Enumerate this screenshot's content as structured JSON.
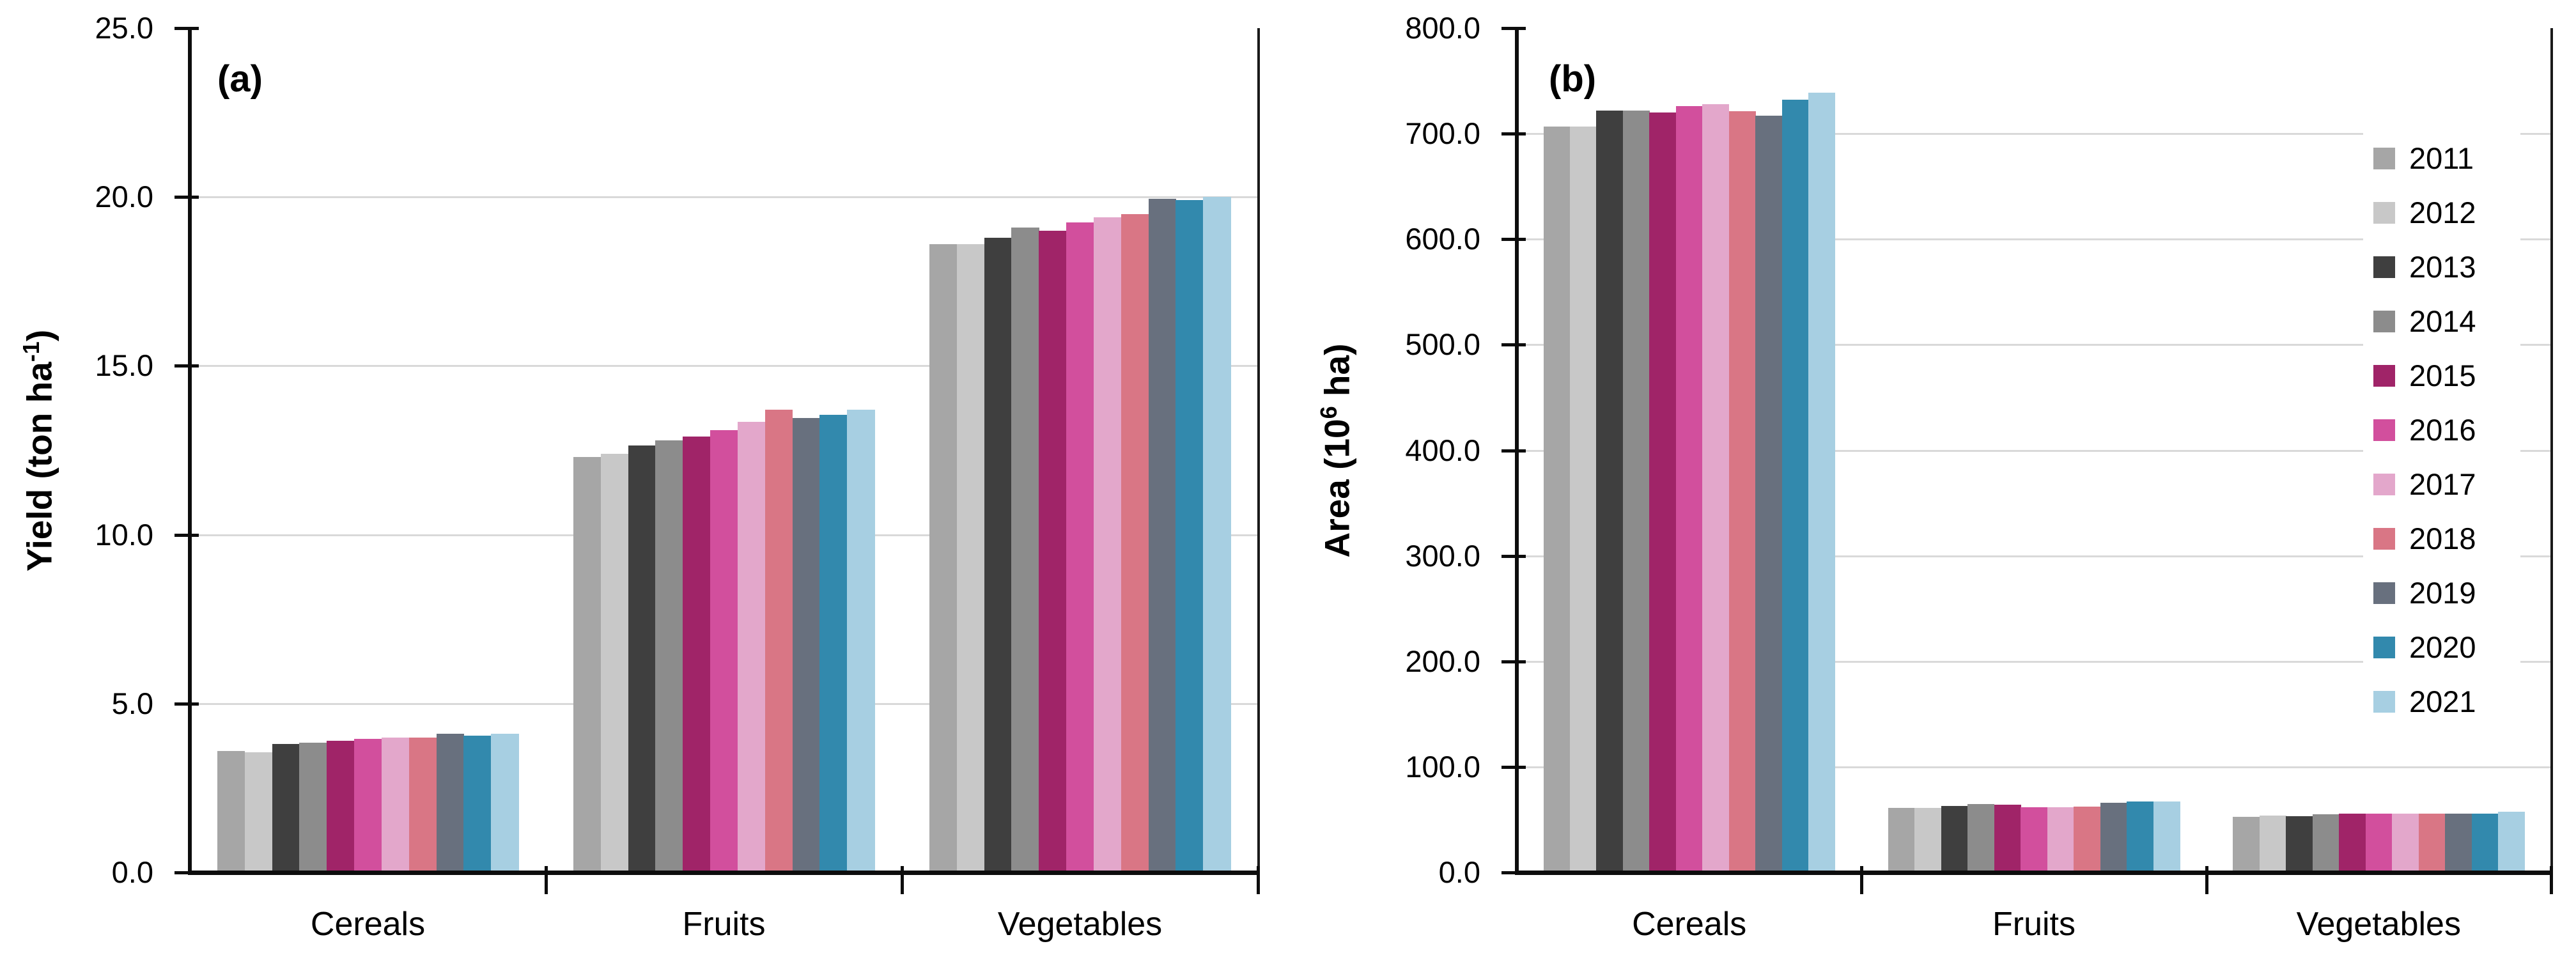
{
  "figure": {
    "background": "#ffffff",
    "grid_color": "#d9d9d9",
    "axis_color": "#0d0d0d"
  },
  "years": [
    "2011",
    "2012",
    "2013",
    "2014",
    "2015",
    "2016",
    "2017",
    "2018",
    "2019",
    "2020",
    "2021"
  ],
  "year_colors": {
    "2011": "#a6a6a6",
    "2012": "#c8c8c8",
    "2013": "#3f3f3f",
    "2014": "#8c8c8c",
    "2015": "#a02468",
    "2016": "#d24f9d",
    "2017": "#e3a7cb",
    "2018": "#d97685",
    "2019": "#68707e",
    "2020": "#3289ad",
    "2021": "#a7cfe2"
  },
  "chart_data": [
    {
      "type": "bar",
      "panel_label": "(a)",
      "title": "",
      "xlabel": "",
      "ylabel": "Yield (ton ha⁻¹)",
      "ylabel_parts": {
        "prefix": "Yield (ton ha",
        "sup": "-1",
        "suffix": ")"
      },
      "ylim": [
        0,
        25
      ],
      "ytick_step": 5,
      "ytick_labels": [
        "0.0",
        "5.0",
        "10.0",
        "15.0",
        "20.0",
        "25.0"
      ],
      "grid": true,
      "legend": false,
      "categories": [
        "Cereals",
        "Fruits",
        "Vegetables"
      ],
      "series": [
        {
          "name": "2011",
          "values": [
            3.6,
            12.3,
            18.6
          ]
        },
        {
          "name": "2012",
          "values": [
            3.55,
            12.4,
            18.6
          ]
        },
        {
          "name": "2013",
          "values": [
            3.8,
            12.65,
            18.8
          ]
        },
        {
          "name": "2014",
          "values": [
            3.85,
            12.8,
            19.1
          ]
        },
        {
          "name": "2015",
          "values": [
            3.9,
            12.9,
            19.0
          ]
        },
        {
          "name": "2016",
          "values": [
            3.95,
            13.1,
            19.25
          ]
        },
        {
          "name": "2017",
          "values": [
            4.0,
            13.35,
            19.4
          ]
        },
        {
          "name": "2018",
          "values": [
            4.0,
            13.7,
            19.5
          ]
        },
        {
          "name": "2019",
          "values": [
            4.1,
            13.45,
            19.95
          ]
        },
        {
          "name": "2020",
          "values": [
            4.05,
            13.55,
            19.9
          ]
        },
        {
          "name": "2021",
          "values": [
            4.1,
            13.7,
            20.0
          ]
        }
      ]
    },
    {
      "type": "bar",
      "panel_label": "(b)",
      "title": "",
      "xlabel": "",
      "ylabel": "Area (10⁶ ha)",
      "ylabel_parts": {
        "prefix": "Area (10",
        "sup": "6",
        "suffix": " ha)"
      },
      "ylim": [
        0,
        800
      ],
      "ytick_step": 100,
      "ytick_labels": [
        "0.0",
        "100.0",
        "200.0",
        "300.0",
        "400.0",
        "500.0",
        "600.0",
        "700.0",
        "800.0"
      ],
      "grid": true,
      "legend": true,
      "legend_position": "right-inside",
      "categories": [
        "Cereals",
        "Fruits",
        "Vegetables"
      ],
      "series": [
        {
          "name": "2011",
          "values": [
            707,
            61.0,
            52.5
          ]
        },
        {
          "name": "2012",
          "values": [
            707,
            61.0,
            54.0
          ]
        },
        {
          "name": "2013",
          "values": [
            722,
            63.0,
            53.5
          ]
        },
        {
          "name": "2014",
          "values": [
            722,
            64.5,
            55.0
          ]
        },
        {
          "name": "2015",
          "values": [
            720,
            64.0,
            56.0
          ]
        },
        {
          "name": "2016",
          "values": [
            726,
            62.0,
            56.0
          ]
        },
        {
          "name": "2017",
          "values": [
            728,
            62.0,
            55.5
          ]
        },
        {
          "name": "2018",
          "values": [
            721,
            62.5,
            55.5
          ]
        },
        {
          "name": "2019",
          "values": [
            717,
            66.0,
            55.5
          ]
        },
        {
          "name": "2020",
          "values": [
            732,
            67.0,
            55.5
          ]
        },
        {
          "name": "2021",
          "values": [
            739,
            67.5,
            57.5
          ]
        }
      ]
    }
  ]
}
